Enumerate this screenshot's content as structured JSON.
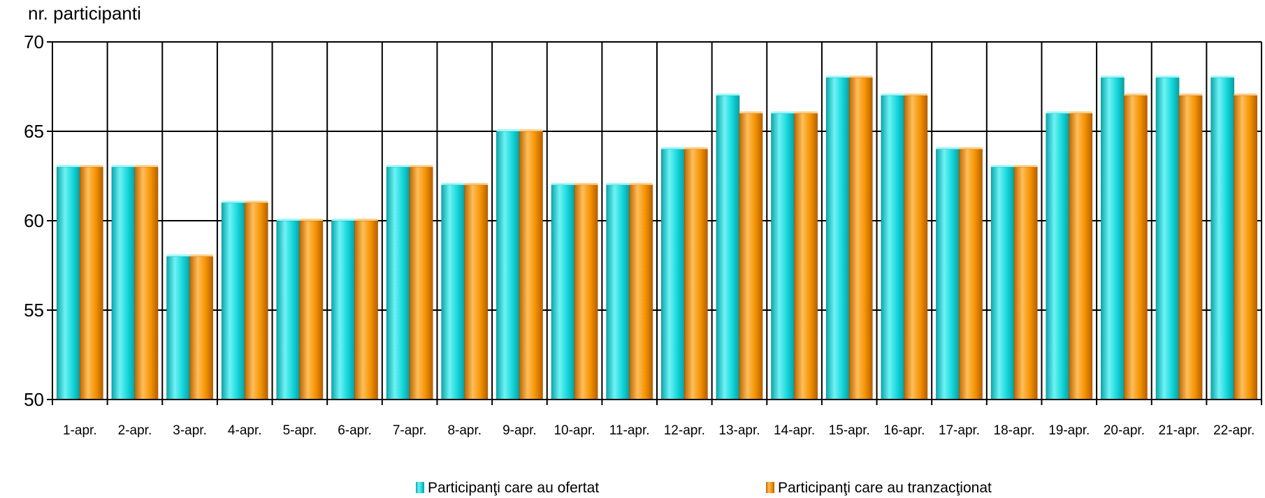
{
  "chart_data": {
    "type": "bar",
    "ylabel": "nr. participanti",
    "xlabel": "",
    "ylim": [
      50,
      70
    ],
    "yticks": [
      50,
      55,
      60,
      65,
      70
    ],
    "grid": true,
    "legend_position": "bottom",
    "categories": [
      "1-apr.",
      "2-apr.",
      "3-apr.",
      "4-apr.",
      "5-apr.",
      "6-apr.",
      "7-apr.",
      "8-apr.",
      "9-apr.",
      "10-apr.",
      "11-apr.",
      "12-apr.",
      "13-apr.",
      "14-apr.",
      "15-apr.",
      "16-apr.",
      "17-apr.",
      "18-apr.",
      "19-apr.",
      "20-apr.",
      "21-apr.",
      "22-apr."
    ],
    "series": [
      {
        "name": "Participanţi care au ofertat",
        "color": "#13D6DA",
        "values": [
          63,
          63,
          58,
          61,
          60,
          60,
          63,
          62,
          65,
          62,
          62,
          64,
          67,
          66,
          68,
          67,
          64,
          63,
          66,
          68,
          68,
          68
        ]
      },
      {
        "name": "Participanţi care au tranzacţionat",
        "color": "#F39100",
        "values": [
          63,
          63,
          58,
          61,
          60,
          60,
          63,
          62,
          65,
          62,
          62,
          64,
          66,
          66,
          68,
          67,
          64,
          63,
          66,
          67,
          67,
          67
        ]
      }
    ]
  }
}
